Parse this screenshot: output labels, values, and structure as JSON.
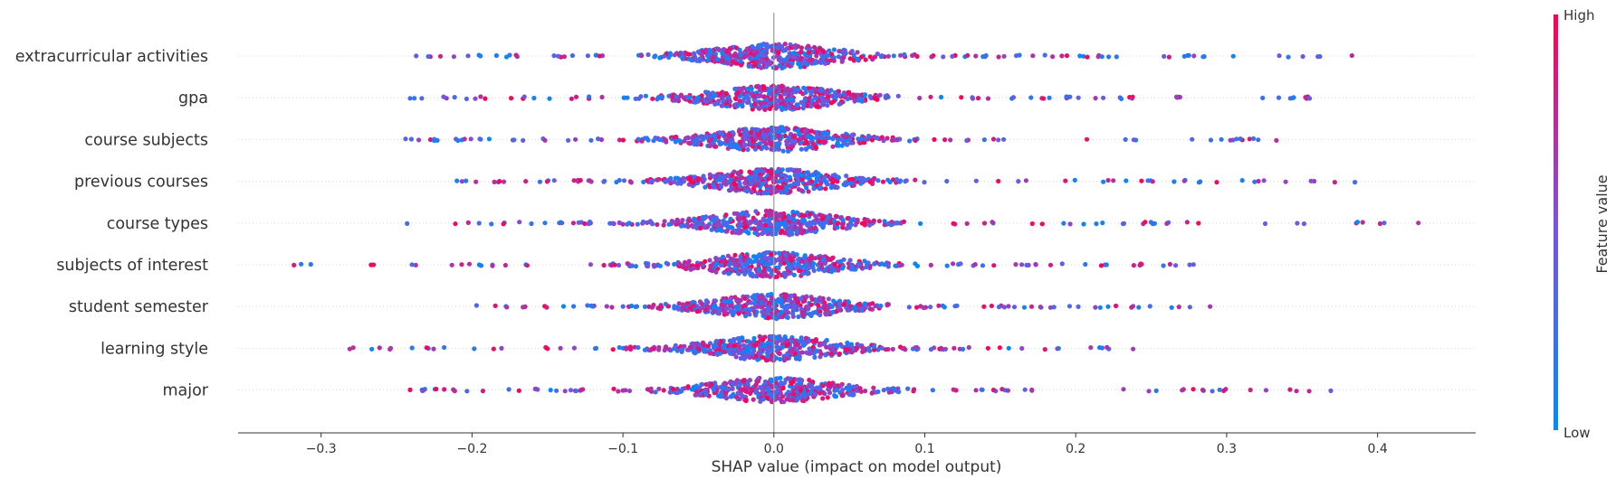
{
  "chart_data": {
    "type": "scatter",
    "subtype": "shap-beeswarm",
    "title": "",
    "xlabel": "SHAP value (impact on model output)",
    "xlim": [
      -0.355,
      0.465
    ],
    "xticks": [
      -0.3,
      -0.2,
      -0.1,
      0.0,
      0.1,
      0.2,
      0.3,
      0.4
    ],
    "xtick_labels": [
      "−0.3",
      "−0.2",
      "−0.1",
      "0.0",
      "0.1",
      "0.2",
      "0.3",
      "0.4"
    ],
    "features": [
      "extracurricular activities",
      "gpa",
      "course subjects",
      "previous courses",
      "course types",
      "subjects of interest",
      "student semester",
      "learning style",
      "major"
    ],
    "feature_ranges": [
      {
        "feature": "extracurricular activities",
        "min": -0.237,
        "max": 0.383
      },
      {
        "feature": "gpa",
        "min": -0.241,
        "max": 0.355
      },
      {
        "feature": "course subjects",
        "min": -0.244,
        "max": 0.333
      },
      {
        "feature": "previous courses",
        "min": -0.21,
        "max": 0.385
      },
      {
        "feature": "course types",
        "min": -0.243,
        "max": 0.427
      },
      {
        "feature": "subjects of interest",
        "min": -0.318,
        "max": 0.278
      },
      {
        "feature": "student semester",
        "min": -0.197,
        "max": 0.289
      },
      {
        "feature": "learning style",
        "min": -0.281,
        "max": 0.238
      },
      {
        "feature": "major",
        "min": -0.241,
        "max": 0.369
      }
    ],
    "colorbar": {
      "label": "Feature value",
      "high_label": "High",
      "low_label": "Low",
      "low_color": "#008bfb",
      "high_color": "#ff0052"
    },
    "grid": false,
    "legend": "colorbar-right"
  }
}
